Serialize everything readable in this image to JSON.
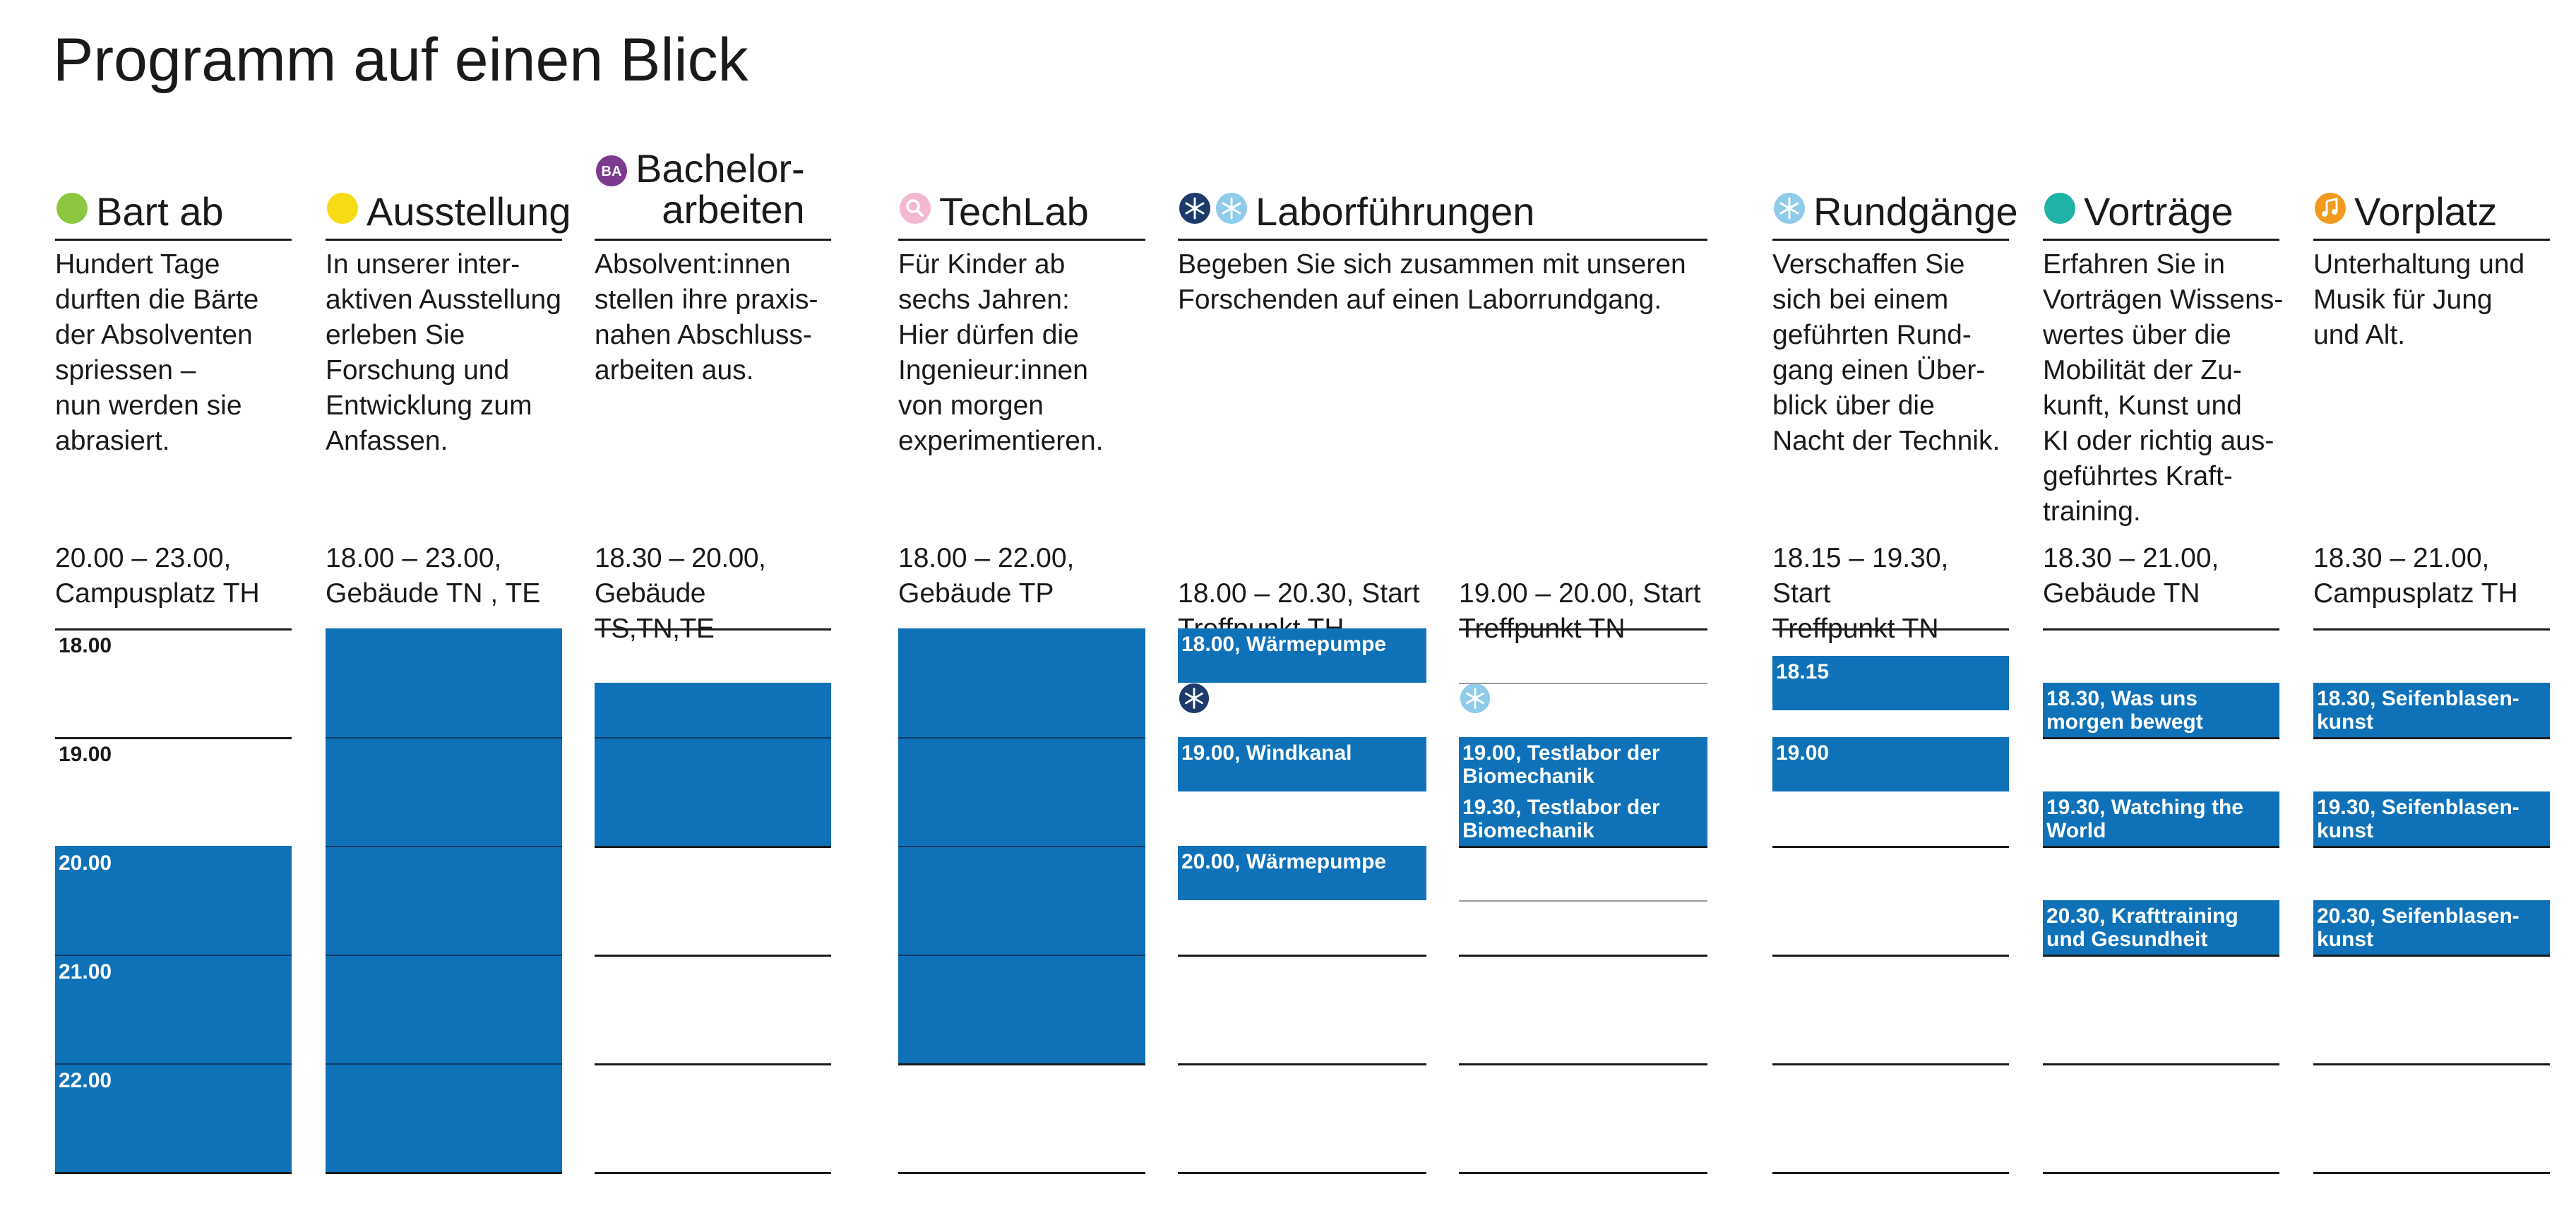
{
  "title": "Programm auf einen Blick",
  "colors": {
    "block": "#0f72b9",
    "ink": "#1a1a1a"
  },
  "hours": [
    "18.00",
    "19.00",
    "20.00",
    "21.00",
    "22.00"
  ],
  "columns": {
    "bart": {
      "icon": "green-dot-icon",
      "icon_color": "#8cc63f",
      "heading": "Bart ab",
      "desc": "Hundert Tage\ndurften die Bärte\nder Absolventen\nspriessen –\nnun werden sie\nabrasiert.",
      "time": "20.00 – 23.00,\nCampusplatz TH",
      "start": 20.0,
      "end": 23.0
    },
    "ausstellung": {
      "icon": "yellow-dot-icon",
      "icon_color": "#f6dc14",
      "heading": "Ausstellung",
      "desc": "In unserer inter-\naktiven Ausstellung\nerleben Sie\nForschung und\nEntwicklung zum\nAnfassen.",
      "time": "18.00 – 23.00,\nGebäude TN , TE",
      "start": 18.0,
      "end": 23.0
    },
    "bachelor": {
      "icon": "ba-badge-icon",
      "icon_color": "#7b3a8e",
      "icon_text": "BA",
      "heading": "Bachelor-\narbeiten",
      "desc": "Absolvent:innen\nstellen ihre praxis-\nnahen Abschluss-\narbeiten aus.",
      "time": "18.30 – 20.00,\nGebäude TS,TN,TE",
      "start": 18.5,
      "end": 20.0
    },
    "techlab": {
      "icon": "magnifier-icon",
      "icon_color": "#f4b8d2",
      "heading": "TechLab",
      "desc": "Für Kinder ab\nsechs Jahren:\nHier dürfen die\nIngenieur:innen\nvon morgen\nexperimentieren.",
      "time": "18.00 – 22.00,\nGebäude TP",
      "start": 18.0,
      "end": 22.0
    },
    "labor": {
      "icons": [
        "snowflake-dark-icon",
        "snowflake-light-icon"
      ],
      "heading": "Laborführungen",
      "desc": "Begeben Sie sich zusammen mit unseren\nForschenden auf einen Laborrundgang.",
      "sub1": {
        "time": "18.00 – 20.30, Start\nTreffpunkt TH",
        "icon": "snowflake-dark-icon",
        "events": [
          {
            "start": 18.0,
            "end": 18.5,
            "label": "18.00, Wärmepumpe"
          },
          {
            "start": 19.0,
            "end": 19.5,
            "label": "19.00, Windkanal"
          },
          {
            "start": 20.0,
            "end": 20.5,
            "label": "20.00, Wärmepumpe"
          }
        ]
      },
      "sub2": {
        "time": "19.00 – 20.00, Start\nTreffpunkt TN",
        "icon": "snowflake-light-icon",
        "events": [
          {
            "start": 19.0,
            "end": 19.5,
            "label": "19.00, Testlabor der\nBiomechanik"
          },
          {
            "start": 19.5,
            "end": 20.0,
            "label": "19.30, Testlabor der\nBiomechanik"
          }
        ]
      }
    },
    "rundgaenge": {
      "icon": "snowflake-light-icon",
      "heading": "Rundgänge",
      "desc": "Verschaffen Sie\nsich bei einem\ngeführten Rund-\ngang einen Über-\nblick über die\nNacht der Technik.",
      "time": "18.15 – 19.30, Start\nTreffpunkt TN",
      "events": [
        {
          "start": 18.25,
          "end": 18.75,
          "label": "18.15"
        },
        {
          "start": 19.0,
          "end": 19.5,
          "label": "19.00"
        }
      ]
    },
    "vortraege": {
      "icon": "teal-dot-icon",
      "icon_color": "#1fb2a6",
      "heading": "Vorträge",
      "desc": "Erfahren Sie in\nVorträgen Wissens-\nwertes über die\nMobilität der Zu-\nkunft, Kunst und\nKI oder richtig aus-\ngeführtes Kraft-\ntraining.",
      "time": "18.30 – 21.00,\nGebäude TN",
      "events": [
        {
          "start": 18.5,
          "end": 19.0,
          "label": "18.30, Was uns\nmorgen bewegt"
        },
        {
          "start": 19.5,
          "end": 20.0,
          "label": "19.30, Watching the\nWorld"
        },
        {
          "start": 20.5,
          "end": 21.0,
          "label": "20.30, Krafttraining\nund Gesundheit"
        }
      ]
    },
    "vorplatz": {
      "icon": "music-note-icon",
      "icon_color": "#f29a1e",
      "heading": "Vorplatz",
      "desc": "Unterhaltung und\nMusik für Jung\nund Alt.",
      "time": "18.30 – 21.00,\nCampusplatz TH",
      "events": [
        {
          "start": 18.5,
          "end": 19.0,
          "label": "18.30, Seifenblasen-\nkunst"
        },
        {
          "start": 19.5,
          "end": 20.0,
          "label": "19.30, Seifenblasen-\nkunst"
        },
        {
          "start": 20.5,
          "end": 21.0,
          "label": "20.30, Seifenblasen-\nkunst"
        }
      ]
    }
  }
}
